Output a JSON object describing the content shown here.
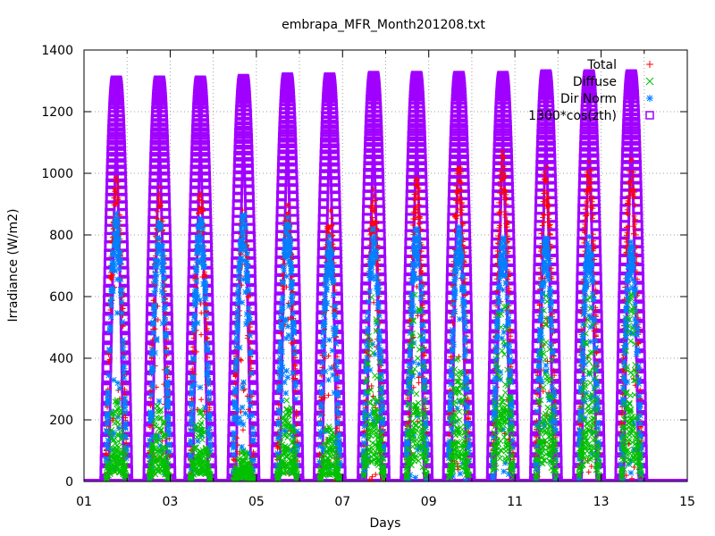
{
  "chart_data": {
    "type": "scatter",
    "title": "embrapa_MFR_Month201208.txt",
    "xlabel": "Days",
    "ylabel": "Irradiance (W/m2)",
    "xlim": [
      1,
      15
    ],
    "ylim": [
      0,
      1400
    ],
    "xticks": [
      "01",
      "03",
      "05",
      "07",
      "09",
      "11",
      "13",
      "15"
    ],
    "yticks": [
      0,
      200,
      400,
      600,
      800,
      1000,
      1200,
      1400
    ],
    "grid": true,
    "legend_position": "top-right",
    "series": [
      {
        "name": "Total",
        "marker": "+",
        "color": "#ff0000",
        "daily_peak": [
          1000,
          960,
          940,
          900,
          920,
          890,
          950,
          1000,
          1050,
          1080,
          1040,
          1060,
          1080
        ]
      },
      {
        "name": "Diffuse",
        "marker": "x",
        "color": "#00c000",
        "daily_peak": [
          300,
          270,
          250,
          100,
          280,
          200,
          650,
          650,
          450,
          700,
          620,
          620,
          620
        ]
      },
      {
        "name": "Dir Norm",
        "marker": "*",
        "color": "#0080ff",
        "daily_peak": [
          870,
          850,
          880,
          880,
          860,
          800,
          830,
          830,
          830,
          800,
          800,
          800,
          780
        ]
      },
      {
        "name": "1300*cos(zth)",
        "marker": "square",
        "color": "#a000ff",
        "daily_peak": [
          1300,
          1300,
          1300,
          1305,
          1310,
          1310,
          1315,
          1315,
          1315,
          1315,
          1320,
          1320,
          1320
        ]
      }
    ],
    "day_centers": [
      1.75,
      2.75,
      3.7,
      4.7,
      5.72,
      6.7,
      7.72,
      8.72,
      9.7,
      10.72,
      11.72,
      12.72,
      13.7
    ]
  }
}
